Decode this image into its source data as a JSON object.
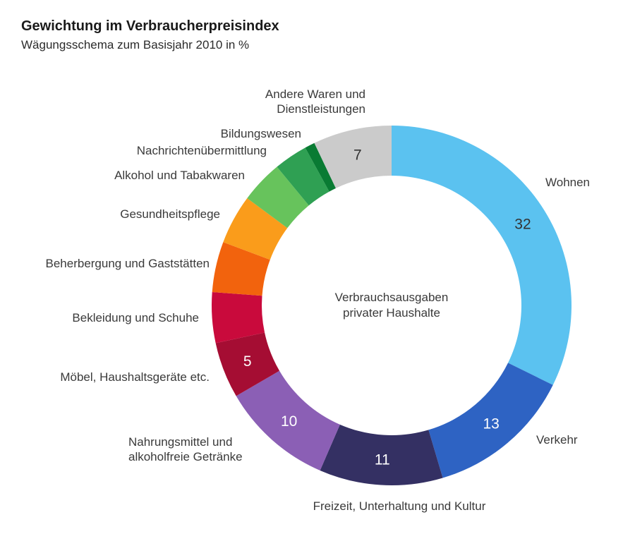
{
  "header": {
    "title": "Gewichtung im Verbraucherpreisindex",
    "subtitle": "Wägungsschema zum Basisjahr 2010 in %"
  },
  "chart_data": {
    "type": "pie",
    "subtype": "donut",
    "title": "Gewichtung im Verbraucherpreisindex",
    "subtitle": "Wägungsschema zum Basisjahr 2010 in %",
    "unit": "%",
    "total": 100,
    "start_angle_deg": 0,
    "direction": "clockwise",
    "center_label_lines": [
      "Verbrauchsausgaben",
      "privater Haushalte"
    ],
    "segments": [
      {
        "label": "Wohnen",
        "value": 32,
        "shown_value": "32",
        "color": "#5bc2f0",
        "value_color": "#333333"
      },
      {
        "label": "Verkehr",
        "value": 13,
        "shown_value": "13",
        "color": "#2e63c3",
        "value_color": "#ffffff"
      },
      {
        "label": "Freizeit, Unterhaltung und Kultur",
        "value": 11,
        "shown_value": "11",
        "color": "#343063",
        "value_color": "#ffffff"
      },
      {
        "label": "Nahrungsmittel und alkoholfreie Getränke",
        "label_lines": [
          "Nahrungsmittel und",
          "alkoholfreie Getränke"
        ],
        "value": 10,
        "shown_value": "10",
        "color": "#8b5fb5",
        "value_color": "#ffffff"
      },
      {
        "label": "Möbel, Haushaltsgeräte etc.",
        "value": 5,
        "shown_value": "5",
        "color": "#a50d33",
        "value_color": "#ffffff"
      },
      {
        "label": "Bekleidung und Schuhe",
        "value": 4.5,
        "shown_value": "",
        "color": "#c90a3c"
      },
      {
        "label": "Beherbergung und Gaststätten",
        "value": 4.5,
        "shown_value": "",
        "color": "#f2630d"
      },
      {
        "label": "Gesundheitspflege",
        "value": 4.4,
        "shown_value": "",
        "color": "#fa9c1b"
      },
      {
        "label": "Alkohol und Tabakwaren",
        "value": 3.8,
        "shown_value": "",
        "color": "#67c35c"
      },
      {
        "label": "Nachrichtenübermittlung",
        "value": 3,
        "shown_value": "",
        "color": "#2fa053"
      },
      {
        "label": "Bildungswesen",
        "value": 0.9,
        "shown_value": "",
        "color": "#097b33"
      },
      {
        "label": "Andere Waren und Dienstleistungen",
        "label_lines": [
          "Andere Waren und",
          "Dienstleistungen"
        ],
        "value": 7,
        "shown_value": "7",
        "color": "#cbcbcb",
        "value_color": "#333333"
      }
    ]
  }
}
